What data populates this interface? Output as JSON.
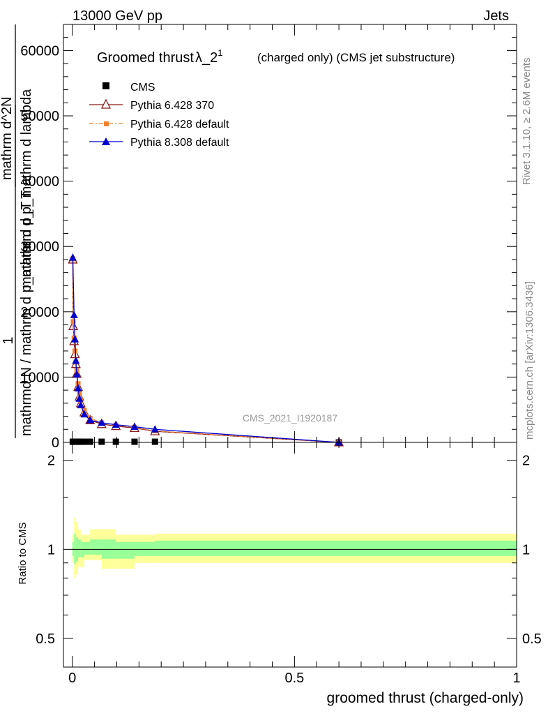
{
  "header": {
    "left": "13000 GeV pp",
    "right": "Jets"
  },
  "side_text": {
    "rivet": "Rivet 3.1.10, ≥ 2.6M events",
    "mcplots": "mcplots.cern.ch [arXiv:1306.3436]"
  },
  "chart_data": [
    {
      "type": "line",
      "title": "Groomed thrust",
      "title_symbol": "λ_2",
      "title_sup": "1",
      "subtitle": "(charged only) (CMS jet substructure)",
      "ylabel_lines": [
        "1",
        "mathrmd N / mathrm d p_mathrm d p_T",
        "mathrm d^2N",
        "mathrm d p_T mathrm d lambda"
      ],
      "xlim": [
        -0.02,
        1.0
      ],
      "ylim": [
        0,
        64000
      ],
      "yticks": [
        0,
        10000,
        20000,
        30000,
        40000,
        50000,
        60000
      ],
      "ytick_labels": [
        "0",
        "10000",
        "20000",
        "30000",
        "40000",
        "50000",
        "60000"
      ],
      "watermark": "CMS_2021_I1920187",
      "legend": [
        {
          "key": "cms",
          "label": "CMS"
        },
        {
          "key": "p6_370",
          "label": "Pythia 6.428 370"
        },
        {
          "key": "p6_def",
          "label": "Pythia 6.428 default"
        },
        {
          "key": "p8_def",
          "label": "Pythia 8.308 default"
        }
      ],
      "series": [
        {
          "key": "cms",
          "name": "CMS",
          "color": "#000000",
          "marker": "square",
          "x": [
            0.001,
            0.004,
            0.008,
            0.013,
            0.019,
            0.027,
            0.04,
            0.066,
            0.098,
            0.14,
            0.186,
            0.6
          ],
          "y": [
            100,
            100,
            100,
            100,
            100,
            100,
            100,
            100,
            100,
            100,
            100,
            0
          ]
        },
        {
          "key": "p6_370",
          "name": "Pythia 6.428 370",
          "color": "#8b1a1a",
          "marker": "open-triangle",
          "dash": "",
          "x": [
            0.001,
            0.002,
            0.004,
            0.006,
            0.008,
            0.01,
            0.013,
            0.016,
            0.019,
            0.027,
            0.04,
            0.066,
            0.098,
            0.14,
            0.186,
            0.6
          ],
          "y": [
            28000,
            17800,
            15500,
            13500,
            12000,
            10500,
            8500,
            7000,
            6000,
            4600,
            3400,
            2800,
            2500,
            2200,
            1700,
            0
          ]
        },
        {
          "key": "p6_def",
          "name": "Pythia 6.428 default",
          "color": "#f0822e",
          "marker": "square",
          "dash": "6,3,2,3",
          "x": [
            0.001,
            0.002,
            0.004,
            0.006,
            0.008,
            0.01,
            0.013,
            0.016,
            0.019,
            0.027,
            0.04,
            0.066,
            0.098,
            0.14,
            0.186,
            0.6
          ],
          "y": [
            28100,
            18500,
            16000,
            14000,
            12300,
            11000,
            9000,
            7500,
            6500,
            4900,
            3700,
            3000,
            2650,
            2300,
            1750,
            0
          ]
        },
        {
          "key": "p8_def",
          "name": "Pythia 8.308 default",
          "color": "#0000cc",
          "marker": "triangle",
          "dash": "",
          "x": [
            0.001,
            0.004,
            0.006,
            0.008,
            0.01,
            0.013,
            0.016,
            0.019,
            0.027,
            0.04,
            0.066,
            0.098,
            0.14,
            0.186,
            0.6
          ],
          "y": [
            28300,
            19500,
            15800,
            12500,
            10400,
            8300,
            6700,
            5700,
            4300,
            3400,
            3000,
            2700,
            2400,
            2000,
            0
          ]
        }
      ]
    },
    {
      "type": "area",
      "ylabel": "Ratio to CMS",
      "xlabel": "groomed thrust (charged-only)",
      "xlim": [
        -0.02,
        1.0
      ],
      "ylim": [
        0.4,
        2.3
      ],
      "yscale": "log",
      "yticks": [
        0.5,
        1,
        2
      ],
      "ytick_labels": [
        "0.5",
        "1",
        "2"
      ],
      "xticks": [
        0,
        0.5,
        1
      ],
      "xtick_labels": [
        "0",
        "0.5",
        "1"
      ],
      "bands": {
        "edges": [
          0.0,
          0.004,
          0.008,
          0.013,
          0.019,
          0.027,
          0.04,
          0.066,
          0.098,
          0.14,
          0.186,
          0.21,
          1.0
        ],
        "yellow_lo": [
          0.9,
          0.8,
          0.82,
          0.87,
          0.87,
          0.92,
          0.92,
          0.86,
          0.86,
          0.9,
          0.9,
          0.9
        ],
        "yellow_hi": [
          1.12,
          1.28,
          1.24,
          1.17,
          1.12,
          1.12,
          1.17,
          1.17,
          1.12,
          1.12,
          1.13,
          1.13
        ],
        "green_lo": [
          0.95,
          0.89,
          0.91,
          0.94,
          0.94,
          0.96,
          0.96,
          0.93,
          0.93,
          0.95,
          0.95,
          0.95
        ],
        "green_hi": [
          1.06,
          1.13,
          1.1,
          1.08,
          1.06,
          1.06,
          1.08,
          1.08,
          1.06,
          1.06,
          1.07,
          1.07
        ],
        "yellow_color": "#ffff99",
        "green_color": "#99ff99"
      },
      "reference_line": 1
    }
  ]
}
